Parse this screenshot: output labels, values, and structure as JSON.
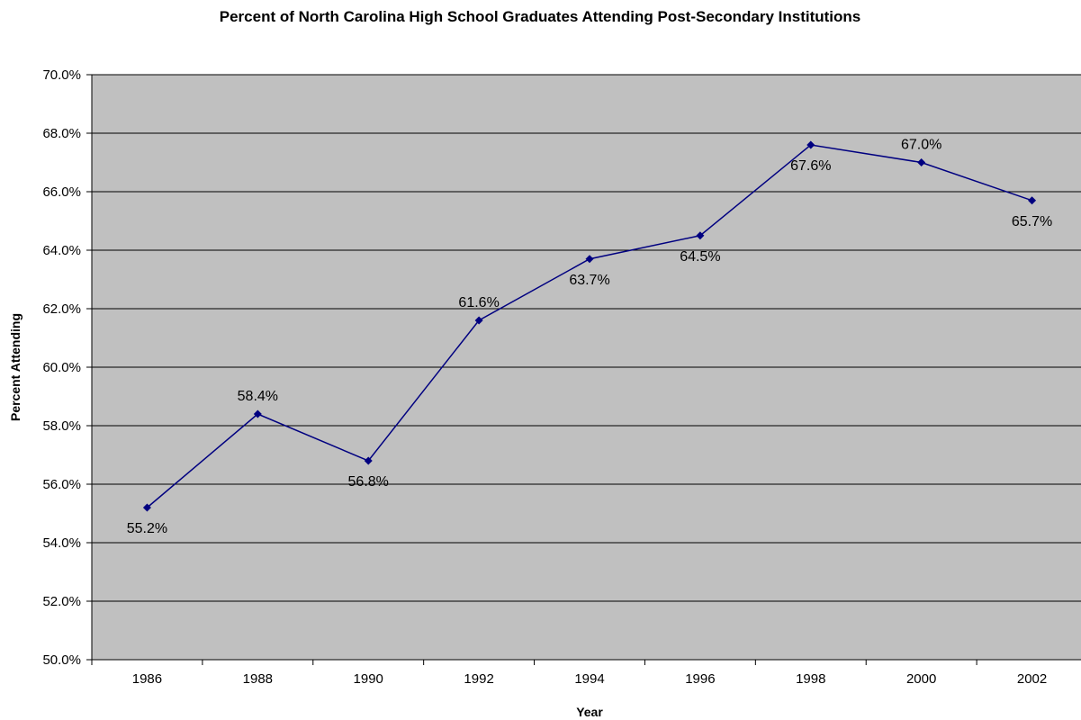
{
  "chart_data": {
    "type": "line",
    "title": "Percent of North Carolina High School Graduates Attending Post-Secondary Institutions",
    "xlabel": "Year",
    "ylabel": "Percent Attending",
    "categories": [
      "1986",
      "1988",
      "1990",
      "1992",
      "1994",
      "1996",
      "1998",
      "2000",
      "2002"
    ],
    "series": [
      {
        "values": [
          55.2,
          58.4,
          56.8,
          61.6,
          63.7,
          64.5,
          67.6,
          67.0,
          65.7
        ],
        "labels": [
          "55.2%",
          "58.4%",
          "56.8%",
          "61.6%",
          "63.7%",
          "64.5%",
          "67.6%",
          "67.0%",
          "65.7%"
        ],
        "label_positions": [
          "below",
          "above",
          "below",
          "above",
          "below",
          "below",
          "below",
          "above",
          "below"
        ]
      }
    ],
    "ylim": [
      50,
      70
    ],
    "yticks": [
      "50.0%",
      "52.0%",
      "54.0%",
      "56.0%",
      "58.0%",
      "60.0%",
      "62.0%",
      "64.0%",
      "66.0%",
      "68.0%",
      "70.0%"
    ],
    "ytick_values": [
      50,
      52,
      54,
      56,
      58,
      60,
      62,
      64,
      66,
      68,
      70
    ],
    "grid": "horizontal",
    "legend": "none",
    "colors": {
      "plot_background": "#c0c0c0",
      "gridline": "#000000",
      "series_line": "#000080",
      "marker": "#000080"
    }
  }
}
